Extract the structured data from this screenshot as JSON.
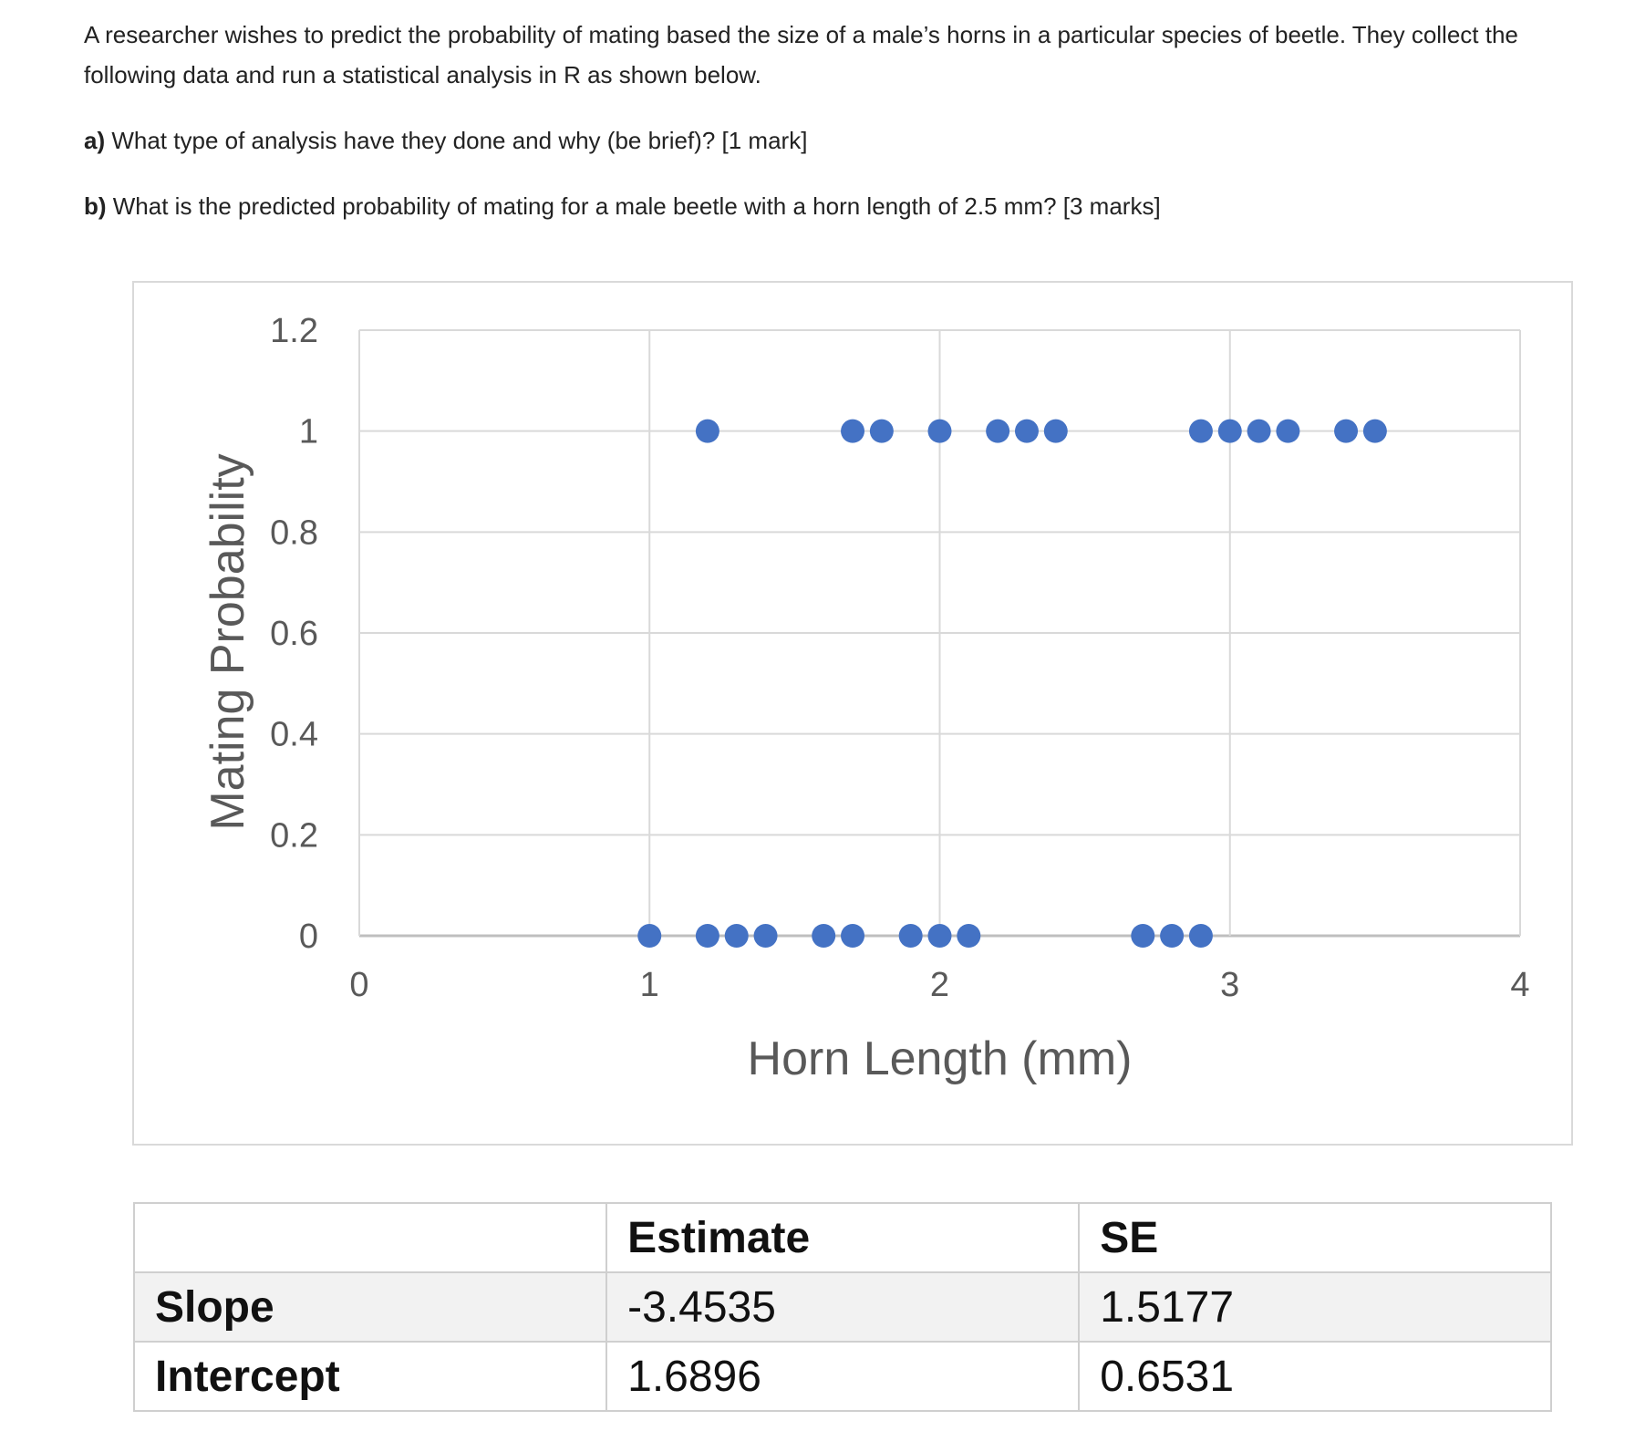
{
  "question": {
    "intro": "A researcher wishes to predict the probability of mating based the size of a male’s horns in a particular species of beetle. They collect the following data and run a statistical analysis in R as shown below.",
    "part_a_label": "a)",
    "part_a_text": " What type of analysis have they done and why (be brief)? [1 mark]",
    "part_b_label": "b)",
    "part_b_text": " What is the predicted probability of mating for a male beetle with a horn length of 2.5 mm? [3 marks]"
  },
  "chart_data": {
    "type": "scatter",
    "xlabel": "Horn Length (mm)",
    "ylabel": "Mating Probability",
    "xlim": [
      0,
      4
    ],
    "ylim": [
      0,
      1.2
    ],
    "xticks": [
      "0",
      "1",
      "2",
      "3",
      "4"
    ],
    "yticks": [
      "0",
      "0.2",
      "0.4",
      "0.6",
      "0.8",
      "1",
      "1.2"
    ],
    "grid": true,
    "marker_color": "#4472C4",
    "points": [
      {
        "x": 1.2,
        "y": 1
      },
      {
        "x": 1.7,
        "y": 1
      },
      {
        "x": 1.8,
        "y": 1
      },
      {
        "x": 2.0,
        "y": 1
      },
      {
        "x": 2.2,
        "y": 1
      },
      {
        "x": 2.3,
        "y": 1
      },
      {
        "x": 2.4,
        "y": 1
      },
      {
        "x": 2.9,
        "y": 1
      },
      {
        "x": 3.0,
        "y": 1
      },
      {
        "x": 3.1,
        "y": 1
      },
      {
        "x": 3.2,
        "y": 1
      },
      {
        "x": 3.4,
        "y": 1
      },
      {
        "x": 3.5,
        "y": 1
      },
      {
        "x": 1.0,
        "y": 0
      },
      {
        "x": 1.2,
        "y": 0
      },
      {
        "x": 1.3,
        "y": 0
      },
      {
        "x": 1.4,
        "y": 0
      },
      {
        "x": 1.6,
        "y": 0
      },
      {
        "x": 1.7,
        "y": 0
      },
      {
        "x": 1.9,
        "y": 0
      },
      {
        "x": 2.0,
        "y": 0
      },
      {
        "x": 2.1,
        "y": 0
      },
      {
        "x": 2.7,
        "y": 0
      },
      {
        "x": 2.8,
        "y": 0
      },
      {
        "x": 2.9,
        "y": 0
      }
    ]
  },
  "table": {
    "headers": [
      "",
      "Estimate",
      "SE"
    ],
    "rows": [
      {
        "label": "Slope",
        "estimate": "-3.4535",
        "se": "1.5177"
      },
      {
        "label": "Intercept",
        "estimate": "1.6896",
        "se": "0.6531"
      }
    ]
  }
}
